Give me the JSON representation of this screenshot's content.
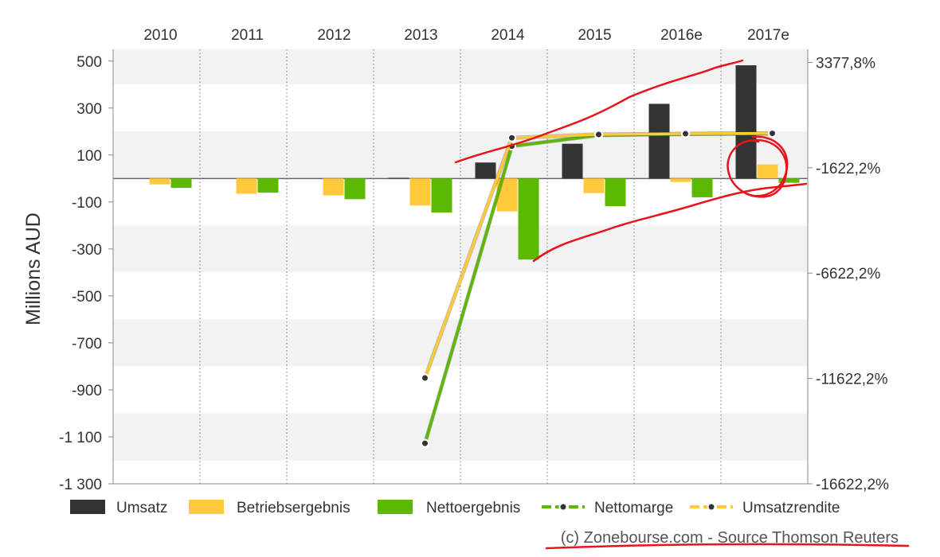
{
  "chart_data": {
    "type": "bar",
    "categories": [
      "2010",
      "2011",
      "2012",
      "2013",
      "2014",
      "2015",
      "2016e",
      "2017e"
    ],
    "ylabel": "Millions AUD",
    "ylim": [
      -1300,
      550
    ],
    "yticks": [
      "500",
      "300",
      "100",
      "-100",
      "-300",
      "-500",
      "-700",
      "-900",
      "-1 100",
      "-1 300"
    ],
    "y2ticks": [
      "3377,8%",
      "-1622,2%",
      "-6622,2%",
      "-11622,2%",
      "-16622,2%"
    ],
    "y2tick_values": [
      3377.8,
      -1622.2,
      -6622.2,
      -11622.2,
      -16622.2
    ],
    "y2lim": [
      -16622.2,
      4000
    ],
    "series": [
      {
        "name": "Umsatz",
        "kind": "bar",
        "color": "#333333",
        "values": [
          0,
          0,
          0,
          3,
          68,
          148,
          318,
          482
        ]
      },
      {
        "name": "Betriebsergebnis",
        "kind": "bar",
        "color": "#ffc93c",
        "values": [
          -25,
          -65,
          -72,
          -115,
          -140,
          -62,
          -15,
          60
        ]
      },
      {
        "name": "Nettoergebnis",
        "kind": "bar",
        "color": "#5cb800",
        "values": [
          -40,
          -60,
          -88,
          -145,
          -345,
          -118,
          -80,
          -18
        ]
      },
      {
        "name": "Nettomarge",
        "kind": "line",
        "color": "#5cb800",
        "axis": "right",
        "values": [
          null,
          null,
          null,
          -14700,
          -600,
          -80,
          -25,
          -4
        ]
      },
      {
        "name": "Umsatzrendite",
        "kind": "line",
        "color": "#ffc93c",
        "axis": "right",
        "values": [
          null,
          null,
          null,
          -11600,
          -200,
          -42,
          -5,
          12
        ]
      }
    ],
    "grid": true,
    "legend_position": "bottom",
    "source": "(c) Zonebourse.com - Source Thomson Reuters"
  }
}
